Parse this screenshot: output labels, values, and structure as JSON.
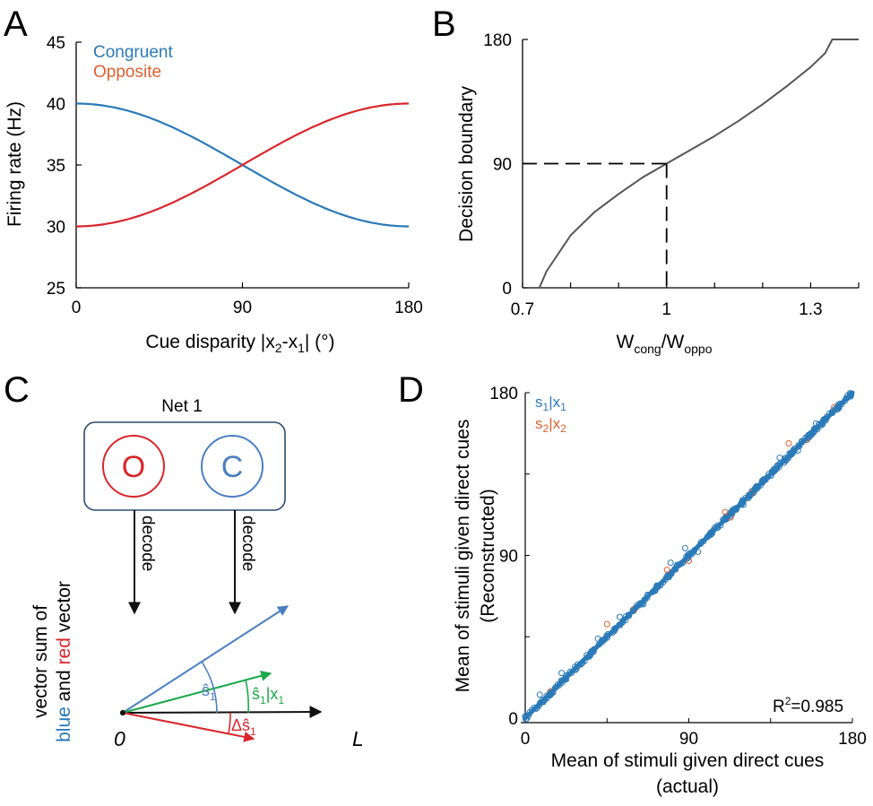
{
  "colors": {
    "blue": "#2a7ab8",
    "red": "#d9262b",
    "orange": "#e06030",
    "green": "#1aa84a",
    "gray": "#555555"
  },
  "chart_data": [
    {
      "panel": "A",
      "type": "line",
      "xlabel": {
        "pre": "Cue disparity |x",
        "sub1": "2",
        "mid": "-x",
        "sub2": "1",
        "post": "| (°)"
      },
      "ylabel": "Firing rate (Hz)",
      "xlim": [
        0,
        180
      ],
      "ylim": [
        25,
        45
      ],
      "xticks": [
        0,
        90,
        180
      ],
      "yticks": [
        25,
        30,
        35,
        40,
        45
      ],
      "series": [
        {
          "name": "Congruent",
          "color": "#2a7ab8",
          "x": [
            0,
            20,
            45,
            70,
            90,
            110,
            135,
            160,
            180
          ],
          "y": [
            40,
            39.7,
            38.5,
            36.7,
            35,
            33.3,
            31.5,
            30.3,
            30
          ]
        },
        {
          "name": "Opposite",
          "color": "#d9262b",
          "x": [
            0,
            20,
            45,
            70,
            90,
            110,
            135,
            160,
            180
          ],
          "y": [
            30,
            30.3,
            31.5,
            33.3,
            35,
            36.7,
            38.5,
            39.7,
            40
          ]
        }
      ]
    },
    {
      "panel": "B",
      "type": "line",
      "xlabel": {
        "main": "W",
        "sub1": "cong",
        "slash": "/W",
        "sub2": "oppo"
      },
      "ylabel": "Decision boundary",
      "xlim": [
        0.7,
        1.4
      ],
      "ylim": [
        0,
        180
      ],
      "xticks": [
        "0.7",
        "1",
        "1.3"
      ],
      "yticks": [
        "0",
        "90",
        "180"
      ],
      "series": [
        {
          "name": "boundary",
          "color": "#555555",
          "x": [
            0.735,
            0.75,
            0.8,
            0.85,
            0.9,
            0.95,
            1.0,
            1.05,
            1.1,
            1.15,
            1.2,
            1.25,
            1.3,
            1.33,
            1.345,
            1.36,
            1.4
          ],
          "y": [
            0,
            12,
            38,
            55,
            68,
            80,
            90,
            100,
            110,
            121,
            133,
            146,
            160,
            170,
            180,
            180,
            180
          ]
        }
      ],
      "reference": {
        "x": 1.0,
        "y": 90
      }
    },
    {
      "panel": "D",
      "type": "scatter",
      "xlabel": "Mean of stimuli given direct cues",
      "xlabel2": "(actual)",
      "ylabel": "Mean of stimuli given direct cues",
      "ylabel2": "(Reconstructed)",
      "xlim": [
        0,
        180
      ],
      "ylim": [
        0,
        180
      ],
      "xticks": [
        "0",
        "90",
        "180"
      ],
      "yticks": [
        "0",
        "90",
        "180"
      ],
      "series": [
        {
          "name": "s1|x1",
          "color": "#2a7ab8",
          "x": [
            0,
            180
          ],
          "y": [
            0,
            180
          ]
        },
        {
          "name": "s2|x2",
          "color": "#e06030",
          "x": [
            0,
            180
          ],
          "y": [
            0,
            180
          ]
        }
      ],
      "annotation": "R²=0.985"
    }
  ],
  "panelA": {
    "letter": "A",
    "legend": {
      "congruent": "Congruent",
      "opposite": "Opposite"
    },
    "xticks": [
      "0",
      "90",
      "180"
    ],
    "yticks": [
      "25",
      "30",
      "35",
      "40",
      "45"
    ],
    "ylabel": "Firing rate (Hz)",
    "xlabel_pre": "Cue disparity |x",
    "xlabel_sub1": "2",
    "xlabel_mid": "-x",
    "xlabel_sub2": "1",
    "xlabel_post": "| (°)"
  },
  "panelB": {
    "letter": "B",
    "xticks": [
      "0.7",
      "1",
      "1.3"
    ],
    "yticks": [
      "0",
      "90",
      "180"
    ],
    "ylabel": "Decision boundary",
    "xlabel_main": "W",
    "xlabel_sub1": "cong",
    "xlabel_slash": "/W",
    "xlabel_sub2": "oppo"
  },
  "panelC": {
    "letter": "C",
    "net": "Net 1",
    "o_label": "O",
    "c_label": "C",
    "decode1": "decode",
    "decode2": "decode",
    "side_line1": "vector sum of",
    "side_blue": "blue",
    "side_and": " and ",
    "side_red": "red",
    "side_vector": " vector",
    "origin": "0",
    "axis_label": "L",
    "blue_hat": "ŝ",
    "blue_sub": "1",
    "green_hat": "ŝ",
    "green_sub1": "1",
    "green_bar": "|x",
    "green_sub2": "1",
    "red_delta": "Δŝ",
    "red_sub": "1"
  },
  "panelD": {
    "letter": "D",
    "xticks": [
      "0",
      "90",
      "180"
    ],
    "yticks": [
      "0",
      "90",
      "180"
    ],
    "legend1_s": "s",
    "legend1_sub1": "1",
    "legend1_bar": "|x",
    "legend1_sub2": "1",
    "legend2_s": "s",
    "legend2_sub1": "2",
    "legend2_bar": "|x",
    "legend2_sub2": "2",
    "r2_pre": "R",
    "r2_sup": "2",
    "r2_post": "=0.985",
    "xlabel": "Mean of stimuli given direct cues",
    "xlabel2": "(actual)",
    "ylabel": "Mean of stimuli given direct cues",
    "ylabel2": "(Reconstructed)"
  }
}
